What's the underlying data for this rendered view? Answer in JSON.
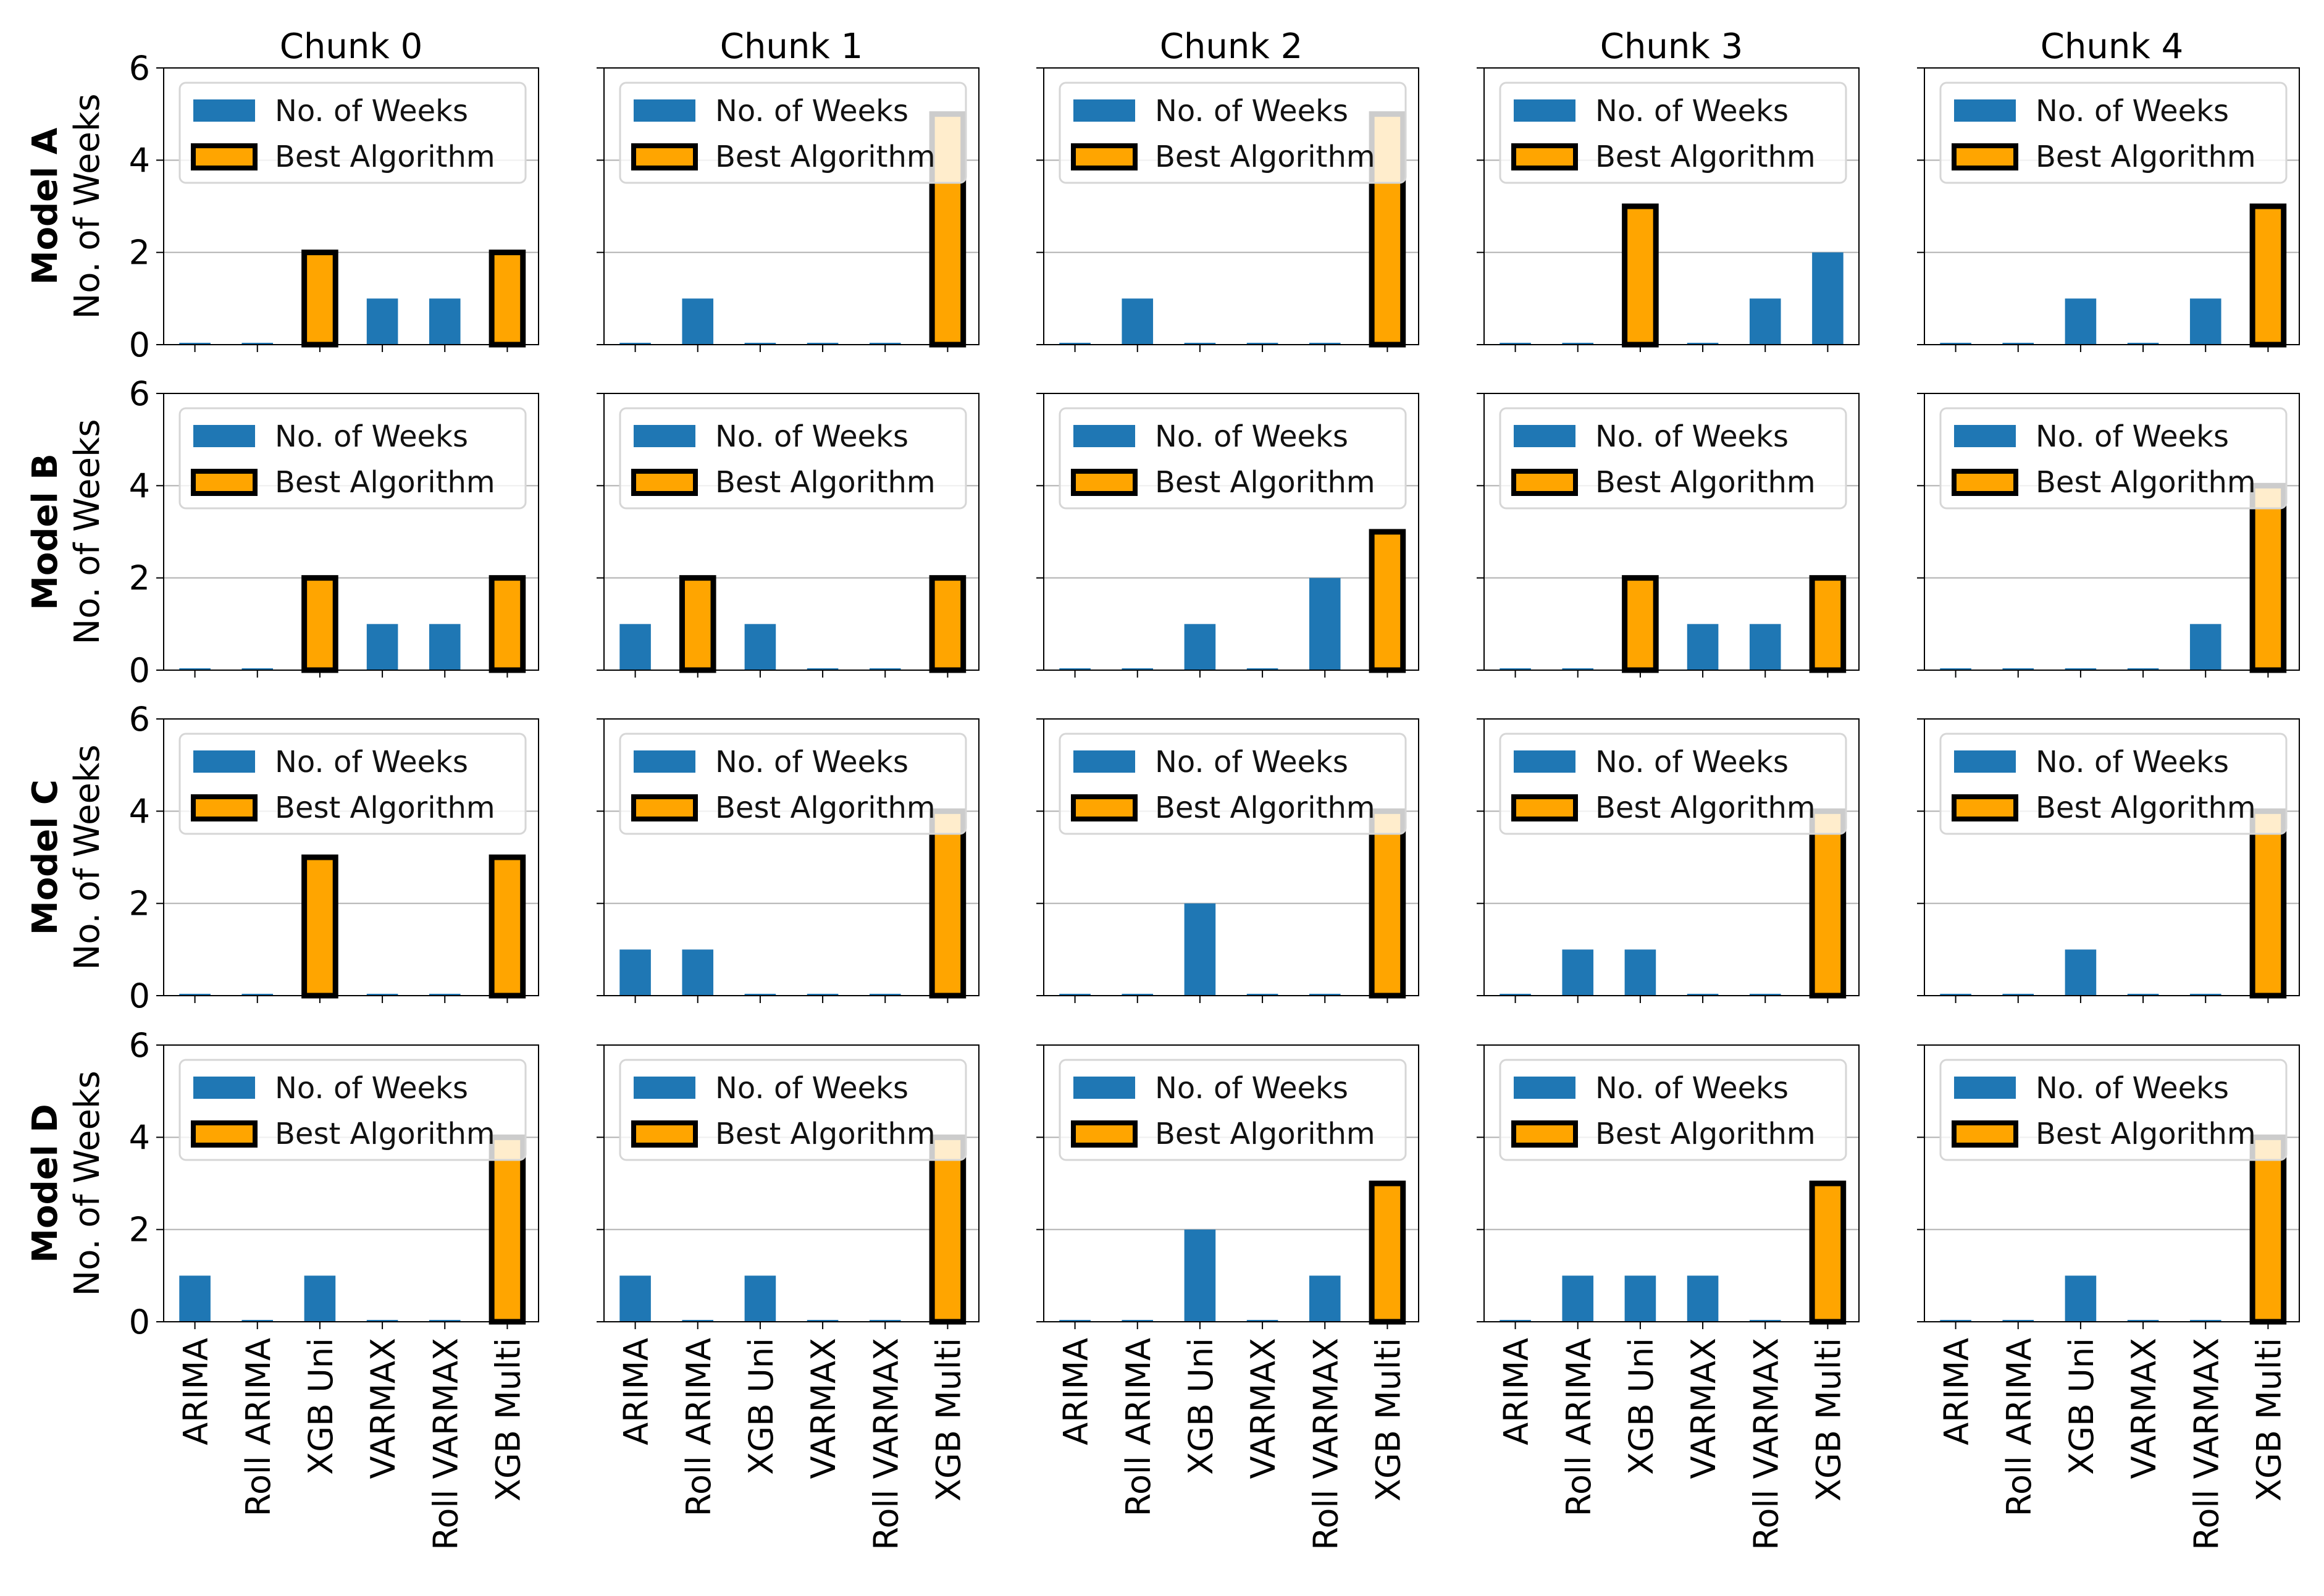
{
  "chart_data": {
    "type": "bar",
    "layout": "grid 4 rows x 5 columns",
    "categories": [
      "ARIMA",
      "Roll ARIMA",
      "XGB Uni",
      "VARMAX",
      "Roll VARMAX",
      "XGB Multi"
    ],
    "columns": [
      "Chunk 0",
      "Chunk 1",
      "Chunk 2",
      "Chunk 3",
      "Chunk 4"
    ],
    "rows": [
      "Model A",
      "Model B",
      "Model C",
      "Model D"
    ],
    "ylabel": "No. of Weeks",
    "ylim": [
      0,
      6
    ],
    "yticks": [
      "0",
      "2",
      "4",
      "6"
    ],
    "grid": "horizontal at 2 and 4",
    "legend": {
      "placement": "upper-left",
      "entries": [
        {
          "name": "No. of Weeks",
          "color": "#1f77b4"
        },
        {
          "name": "Best Algorithm",
          "color": "#ffa500",
          "edge": "#000000"
        }
      ]
    },
    "colors": {
      "weeks": "#1f77b4",
      "best": "#ffa500",
      "edge": "#000000"
    },
    "series": [
      [
        {
          "values": [
            0,
            0,
            2,
            1,
            1,
            2
          ],
          "best": [
            2,
            5
          ]
        },
        {
          "values": [
            0,
            1,
            0,
            0,
            0,
            5
          ],
          "best": [
            5
          ]
        },
        {
          "values": [
            0,
            1,
            0,
            0,
            0,
            5
          ],
          "best": [
            5
          ]
        },
        {
          "values": [
            0,
            0,
            3,
            0,
            1,
            2
          ],
          "best": [
            2
          ]
        },
        {
          "values": [
            0,
            0,
            1,
            0,
            1,
            3
          ],
          "best": [
            5
          ]
        }
      ],
      [
        {
          "values": [
            0,
            0,
            2,
            1,
            1,
            2
          ],
          "best": [
            2,
            5
          ]
        },
        {
          "values": [
            1,
            2,
            1,
            0,
            0,
            2
          ],
          "best": [
            1,
            5
          ]
        },
        {
          "values": [
            0,
            0,
            1,
            0,
            2,
            3
          ],
          "best": [
            5
          ]
        },
        {
          "values": [
            0,
            0,
            2,
            1,
            1,
            2
          ],
          "best": [
            2,
            5
          ]
        },
        {
          "values": [
            0,
            0,
            0,
            0,
            1,
            4
          ],
          "best": [
            5
          ]
        }
      ],
      [
        {
          "values": [
            0,
            0,
            3,
            0,
            0,
            3
          ],
          "best": [
            2,
            5
          ]
        },
        {
          "values": [
            1,
            1,
            0,
            0,
            0,
            4
          ],
          "best": [
            5
          ]
        },
        {
          "values": [
            0,
            0,
            2,
            0,
            0,
            4
          ],
          "best": [
            5
          ]
        },
        {
          "values": [
            0,
            1,
            1,
            0,
            0,
            4
          ],
          "best": [
            5
          ]
        },
        {
          "values": [
            0,
            0,
            1,
            0,
            0,
            4
          ],
          "best": [
            5
          ]
        }
      ],
      [
        {
          "values": [
            1,
            0,
            1,
            0,
            0,
            4
          ],
          "best": [
            5
          ]
        },
        {
          "values": [
            1,
            0,
            1,
            0,
            0,
            4
          ],
          "best": [
            5
          ]
        },
        {
          "values": [
            0,
            0,
            2,
            0,
            1,
            3
          ],
          "best": [
            5
          ]
        },
        {
          "values": [
            0,
            1,
            1,
            1,
            0,
            3
          ],
          "best": [
            5
          ]
        },
        {
          "values": [
            0,
            0,
            1,
            0,
            0,
            4
          ],
          "best": [
            5
          ]
        }
      ]
    ]
  }
}
